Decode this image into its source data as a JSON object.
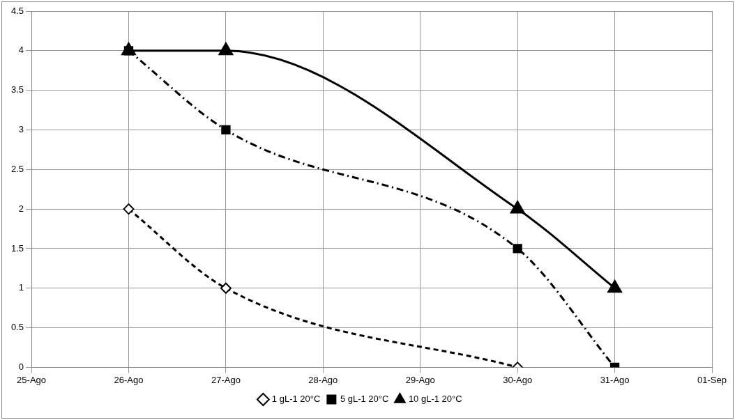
{
  "chart_data": {
    "type": "line",
    "xlim": [
      "--08-25",
      "--09-01"
    ],
    "xticks": [
      {
        "value": "--08-25",
        "label": "25-Ago"
      },
      {
        "value": "--08-26",
        "label": "26-Ago"
      },
      {
        "value": "--08-27",
        "label": "27-Ago"
      },
      {
        "value": "--08-28",
        "label": "28-Ago"
      },
      {
        "value": "--08-29",
        "label": "29-Ago"
      },
      {
        "value": "--08-30",
        "label": "30-Ago"
      },
      {
        "value": "--08-31",
        "label": "31-Ago"
      },
      {
        "value": "--09-01",
        "label": "01-Sep"
      }
    ],
    "ylim": [
      0,
      4.5
    ],
    "yticks": [
      0,
      0.5,
      1,
      1.5,
      2,
      2.5,
      3,
      3.5,
      4,
      4.5
    ],
    "grid": true,
    "legend": "bottom",
    "series": [
      {
        "name": "1 gL-1 20°C",
        "color": "#000000",
        "x": [
          "--08-26",
          "--08-27",
          "--08-30"
        ],
        "values": [
          2,
          1,
          0
        ],
        "marker": "diamond",
        "line_style": "dashed"
      },
      {
        "name": "5 gL-1 20°C",
        "color": "#000000",
        "x": [
          "--08-26",
          "--08-27",
          "--08-30",
          "--08-31"
        ],
        "values": [
          4,
          3,
          1.5,
          0
        ],
        "marker": "square",
        "line_style": "dashdot"
      },
      {
        "name": "10 gL-1 20°C",
        "color": "#000000",
        "x": [
          "--08-26",
          "--08-27",
          "--08-30",
          "--08-31"
        ],
        "values": [
          4,
          4,
          2,
          1
        ],
        "marker": "triangle",
        "line_style": "solid"
      }
    ]
  }
}
